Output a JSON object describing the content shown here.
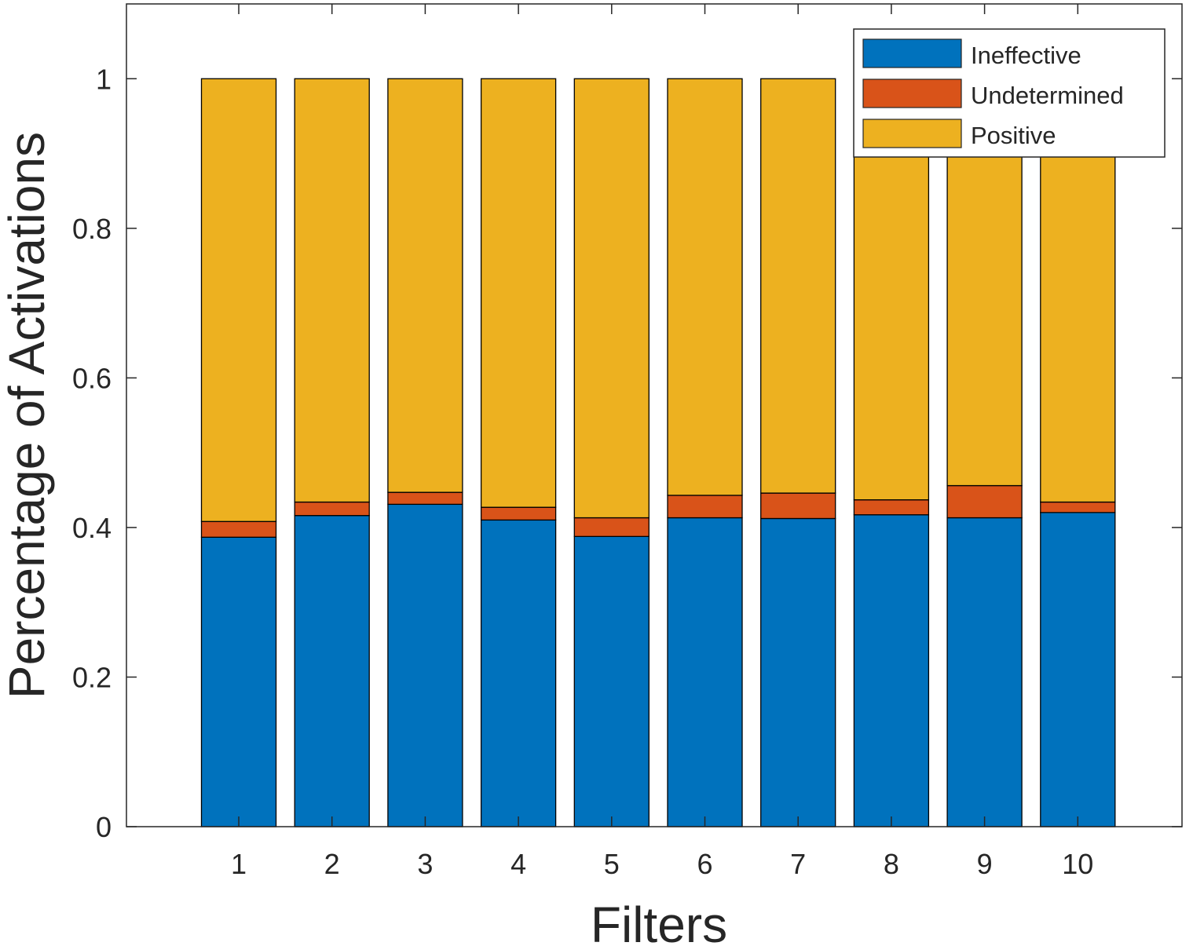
{
  "chart_data": {
    "type": "bar",
    "stacked": true,
    "xlabel": "Filters",
    "ylabel": "Percentage of Activations",
    "categories": [
      "1",
      "2",
      "3",
      "4",
      "5",
      "6",
      "7",
      "8",
      "9",
      "10"
    ],
    "series": [
      {
        "name": "Ineffective",
        "color": "#0072BD",
        "values": [
          0.387,
          0.416,
          0.431,
          0.41,
          0.388,
          0.413,
          0.412,
          0.417,
          0.413,
          0.42
        ]
      },
      {
        "name": "Undetermined",
        "color": "#D95319",
        "values": [
          0.021,
          0.018,
          0.016,
          0.017,
          0.025,
          0.03,
          0.034,
          0.02,
          0.043,
          0.014
        ]
      },
      {
        "name": "Positive",
        "color": "#EDB120",
        "values": [
          0.592,
          0.566,
          0.553,
          0.573,
          0.587,
          0.557,
          0.554,
          0.563,
          0.544,
          0.566
        ]
      }
    ],
    "ylim": [
      0,
      1.1
    ],
    "yticks": [
      0,
      0.2,
      0.4,
      0.6,
      0.8,
      1
    ],
    "ytick_labels": [
      "0",
      "0.2",
      "0.4",
      "0.6",
      "0.8",
      "1"
    ],
    "legend_position": "top-right",
    "grid": false
  }
}
